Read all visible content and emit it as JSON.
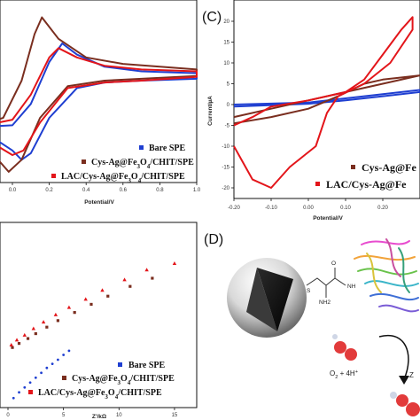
{
  "legend_a": [
    "Bare SPE",
    "Cys-Ag@Fe3O4/CHIT/SPE",
    "LAC/Cys-Ag@Fe3O4/CHIT/SPE"
  ],
  "legend_c": [
    "Cys-Ag@Fe",
    "LAC/Cys-Ag@Fe"
  ],
  "legend_b": [
    "Bare SPE",
    "Cys-Ag@Fe3O4/CHIT/SPE",
    "LAC/Cys-Ag@Fe3O4/CHIT/SPE"
  ],
  "panel_c": "(C)",
  "panel_d": "(D)",
  "reaction_label": "O2 + 4H+",
  "chem_labels": {
    "s": "S",
    "nh2": "NH2",
    "nh": "NH",
    "o": "O",
    "z": "Z"
  },
  "colors": {
    "bare": "#1f3fd1",
    "cys": "#7a2e1f",
    "lac": "#e3151a"
  },
  "chart_data": [
    {
      "id": "A",
      "type": "line",
      "xlabel": "Potential/V",
      "ylabel": "",
      "xlim": [
        -0.2,
        1.0
      ],
      "x_ticks": [
        "0.0",
        "0.2",
        "0.4",
        "0.6",
        "0.8",
        "1.0"
      ],
      "series": [
        {
          "name": "Bare SPE",
          "color": "#1f3fd1",
          "forward": [
            [
              -0.2,
              -30
            ],
            [
              0.0,
              -28
            ],
            [
              0.1,
              -5
            ],
            [
              0.2,
              40
            ],
            [
              0.27,
              60
            ],
            [
              0.35,
              48
            ],
            [
              0.5,
              35
            ],
            [
              0.7,
              30
            ],
            [
              1.0,
              28
            ]
          ],
          "reverse": [
            [
              1.0,
              22
            ],
            [
              0.7,
              20
            ],
            [
              0.5,
              18
            ],
            [
              0.35,
              12
            ],
            [
              0.2,
              -20
            ],
            [
              0.1,
              -58
            ],
            [
              0.05,
              -65
            ],
            [
              0.0,
              -55
            ],
            [
              -0.1,
              -42
            ],
            [
              -0.2,
              -35
            ]
          ]
        },
        {
          "name": "Cys-Ag@Fe3O4/CHIT/SPE",
          "color": "#7a2e1f",
          "forward": [
            [
              -0.2,
              -30
            ],
            [
              -0.05,
              -20
            ],
            [
              0.05,
              20
            ],
            [
              0.12,
              70
            ],
            [
              0.16,
              88
            ],
            [
              0.25,
              65
            ],
            [
              0.4,
              45
            ],
            [
              0.6,
              38
            ],
            [
              1.0,
              32
            ]
          ],
          "reverse": [
            [
              1.0,
              25
            ],
            [
              0.7,
              22
            ],
            [
              0.5,
              20
            ],
            [
              0.3,
              14
            ],
            [
              0.15,
              -20
            ],
            [
              0.05,
              -65
            ],
            [
              -0.02,
              -78
            ],
            [
              -0.1,
              -60
            ],
            [
              -0.2,
              -45
            ]
          ]
        },
        {
          "name": "LAC/Cys-Ag@Fe3O4/CHIT/SPE",
          "color": "#e3151a",
          "forward": [
            [
              -0.2,
              -30
            ],
            [
              0.0,
              -22
            ],
            [
              0.1,
              5
            ],
            [
              0.2,
              45
            ],
            [
              0.25,
              55
            ],
            [
              0.35,
              45
            ],
            [
              0.5,
              36
            ],
            [
              0.7,
              32
            ],
            [
              1.0,
              30
            ]
          ],
          "reverse": [
            [
              1.0,
              24
            ],
            [
              0.7,
              20
            ],
            [
              0.5,
              18
            ],
            [
              0.3,
              12
            ],
            [
              0.15,
              -25
            ],
            [
              0.06,
              -55
            ],
            [
              0.0,
              -60
            ],
            [
              -0.1,
              -48
            ],
            [
              -0.2,
              -38
            ]
          ]
        }
      ]
    },
    {
      "id": "C",
      "type": "line",
      "xlabel": "Potential/V",
      "ylabel": "Current/µA",
      "xlim": [
        -0.2,
        0.3
      ],
      "ylim": [
        -22,
        24
      ],
      "x_ticks": [
        "-0.20",
        "-0.10",
        "0.00",
        "0.10",
        "0.20"
      ],
      "y_ticks": [
        "20",
        "15",
        "10",
        "5",
        "0",
        "-5",
        "-10",
        "-15",
        "-20"
      ],
      "series": [
        {
          "name": "Bare",
          "color": "#1f3fd1",
          "forward": [
            [
              -0.2,
              0
            ],
            [
              0.0,
              0.5
            ],
            [
              0.1,
              1.5
            ],
            [
              0.2,
              2.5
            ],
            [
              0.3,
              3.5
            ]
          ],
          "reverse": [
            [
              0.3,
              3.0
            ],
            [
              0.2,
              2.0
            ],
            [
              0.1,
              1.0
            ],
            [
              0.0,
              0.2
            ],
            [
              -0.2,
              -0.5
            ]
          ]
        },
        {
          "name": "Cys-Ag@Fe",
          "color": "#7a2e1f",
          "forward": [
            [
              -0.2,
              -3
            ],
            [
              -0.1,
              -1
            ],
            [
              0.0,
              1
            ],
            [
              0.1,
              3
            ],
            [
              0.2,
              5
            ],
            [
              0.3,
              7
            ]
          ],
          "reverse": [
            [
              0.3,
              7
            ],
            [
              0.2,
              6
            ],
            [
              0.15,
              5
            ],
            [
              0.08,
              2
            ],
            [
              0.0,
              -1
            ],
            [
              -0.1,
              -3
            ],
            [
              -0.2,
              -4.5
            ]
          ]
        },
        {
          "name": "LAC/Cys-Ag@Fe",
          "color": "#e3151a",
          "forward": [
            [
              -0.2,
              -5
            ],
            [
              -0.15,
              -3
            ],
            [
              -0.1,
              -0.5
            ],
            [
              0.0,
              1
            ],
            [
              0.1,
              3
            ],
            [
              0.15,
              6
            ],
            [
              0.2,
              12
            ],
            [
              0.25,
              18
            ],
            [
              0.28,
              21
            ]
          ],
          "reverse": [
            [
              0.28,
              18
            ],
            [
              0.22,
              10
            ],
            [
              0.15,
              5
            ],
            [
              0.08,
              2
            ],
            [
              0.05,
              -2
            ],
            [
              0.02,
              -10
            ],
            [
              -0.05,
              -15
            ],
            [
              -0.1,
              -20
            ],
            [
              -0.15,
              -18
            ],
            [
              -0.2,
              -10
            ]
          ]
        }
      ]
    },
    {
      "id": "B",
      "type": "scatter",
      "xlabel": "Z'/kΩ",
      "x_ticks": [
        "0",
        "5",
        "10",
        "15"
      ],
      "xlim": [
        0,
        17
      ],
      "series": [
        {
          "name": "Bare SPE",
          "color": "#1f3fd1",
          "points": [
            [
              0.5,
              0.3
            ],
            [
              1,
              1
            ],
            [
              1.5,
              1.6
            ],
            [
              2,
              2.2
            ],
            [
              2.5,
              2.8
            ],
            [
              3,
              3.4
            ],
            [
              3.5,
              4.0
            ],
            [
              4,
              4.5
            ],
            [
              4.5,
              5.0
            ],
            [
              5,
              5.6
            ],
            [
              5.5,
              6.1
            ]
          ]
        },
        {
          "name": "Cys-Ag@Fe3O4/CHIT/SPE",
          "color": "#7a2e1f",
          "points": [
            [
              0.4,
              6.5
            ],
            [
              1,
              7.0
            ],
            [
              1.8,
              7.6
            ],
            [
              2.5,
              8.2
            ],
            [
              3.5,
              9.0
            ],
            [
              4.5,
              9.8
            ],
            [
              6,
              10.8
            ],
            [
              7.5,
              11.8
            ],
            [
              9,
              12.8
            ],
            [
              11,
              14.0
            ],
            [
              13,
              15.0
            ]
          ]
        },
        {
          "name": "LAC/Cys-Ag@Fe3O4/CHIT/SPE",
          "color": "#e3151a",
          "points": [
            [
              0.3,
              6.8
            ],
            [
              0.8,
              7.4
            ],
            [
              1.5,
              8.0
            ],
            [
              2.3,
              8.8
            ],
            [
              3.2,
              9.6
            ],
            [
              4.3,
              10.5
            ],
            [
              5.5,
              11.4
            ],
            [
              7,
              12.4
            ],
            [
              8.5,
              13.5
            ],
            [
              10.5,
              14.8
            ],
            [
              12.5,
              16.0
            ],
            [
              15,
              16.8
            ]
          ]
        }
      ]
    }
  ]
}
